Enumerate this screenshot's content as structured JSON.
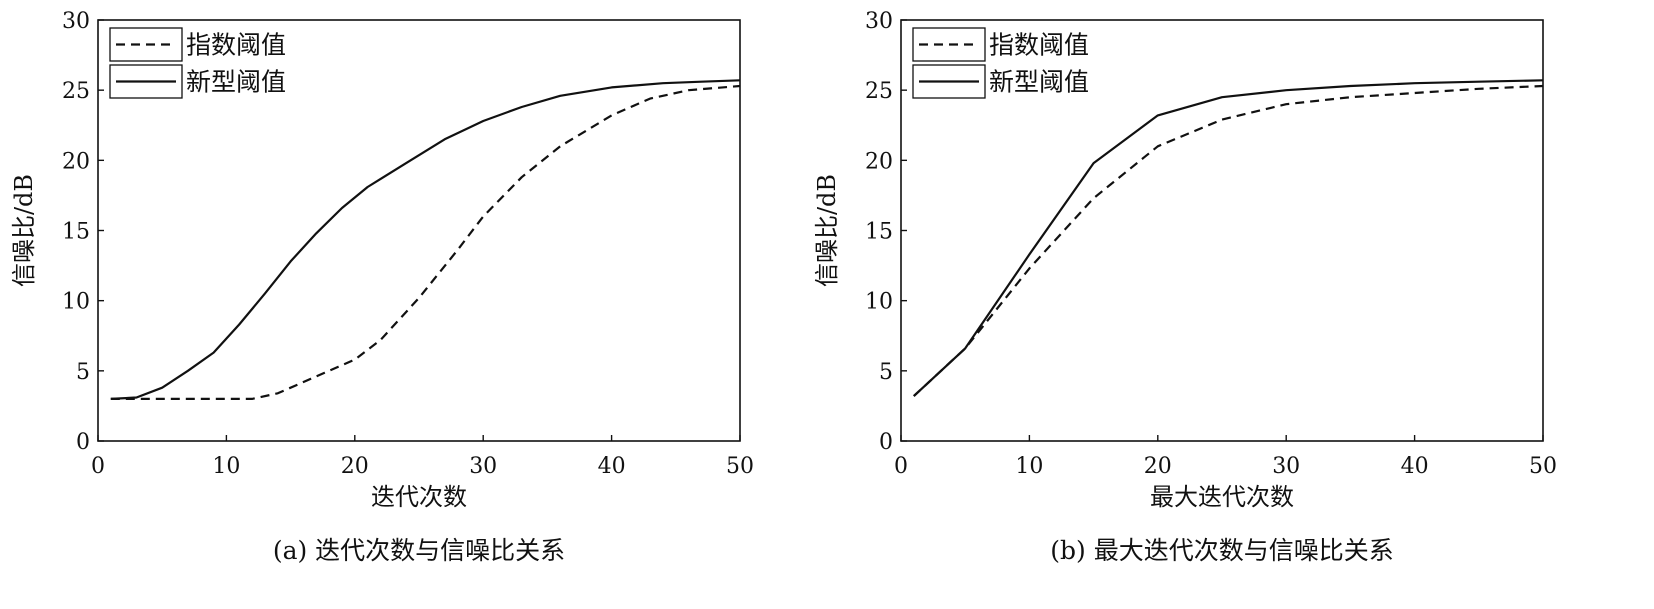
{
  "chart_data": [
    {
      "type": "line",
      "caption": "(a) 迭代次数与信噪比关系",
      "xlabel": "迭代次数",
      "ylabel": "信噪比/dB",
      "xlim": [
        0,
        50
      ],
      "ylim": [
        0,
        30
      ],
      "xticks": [
        "0",
        "10",
        "20",
        "30",
        "40",
        "50"
      ],
      "yticks": [
        "0",
        "5",
        "10",
        "15",
        "20",
        "25",
        "30"
      ],
      "grid": false,
      "legend_position": "top-left",
      "series": [
        {
          "name": "指数阈值",
          "style": "dashed",
          "x": [
            1,
            4,
            8,
            12,
            14,
            17,
            20,
            22,
            25,
            28,
            30,
            33,
            36,
            40,
            43,
            46,
            50
          ],
          "y": [
            3,
            3,
            3,
            3,
            3.4,
            4.6,
            5.8,
            7.2,
            10.2,
            13.6,
            16,
            18.8,
            21,
            23.2,
            24.4,
            25,
            25.3
          ]
        },
        {
          "name": "新型阈值",
          "style": "solid",
          "x": [
            1,
            3,
            5,
            7,
            9,
            11,
            13,
            15,
            17,
            19,
            21,
            24,
            27,
            30,
            33,
            36,
            40,
            44,
            47,
            50
          ],
          "y": [
            3,
            3.1,
            3.8,
            5,
            6.3,
            8.3,
            10.5,
            12.8,
            14.8,
            16.6,
            18.1,
            19.8,
            21.5,
            22.8,
            23.8,
            24.6,
            25.2,
            25.5,
            25.6,
            25.7
          ]
        }
      ]
    },
    {
      "type": "line",
      "caption": "(b) 最大迭代次数与信噪比关系",
      "xlabel": "最大迭代次数",
      "ylabel": "信噪比/dB",
      "xlim": [
        0,
        50
      ],
      "ylim": [
        0,
        30
      ],
      "xticks": [
        "0",
        "10",
        "20",
        "30",
        "40",
        "50"
      ],
      "yticks": [
        "0",
        "5",
        "10",
        "15",
        "20",
        "25",
        "30"
      ],
      "grid": false,
      "legend_position": "top-left",
      "series": [
        {
          "name": "指数阈值",
          "style": "dashed",
          "x": [
            1,
            5,
            10,
            15,
            20,
            25,
            30,
            35,
            40,
            45,
            50
          ],
          "y": [
            3.2,
            6.6,
            12.3,
            17.3,
            21,
            22.9,
            24,
            24.5,
            24.8,
            25.1,
            25.3
          ]
        },
        {
          "name": "新型阈值",
          "style": "solid",
          "x": [
            1,
            5,
            10,
            15,
            20,
            25,
            30,
            35,
            40,
            45,
            50
          ],
          "y": [
            3.2,
            6.6,
            13.3,
            19.8,
            23.2,
            24.5,
            25,
            25.3,
            25.5,
            25.6,
            25.7
          ]
        }
      ]
    }
  ]
}
